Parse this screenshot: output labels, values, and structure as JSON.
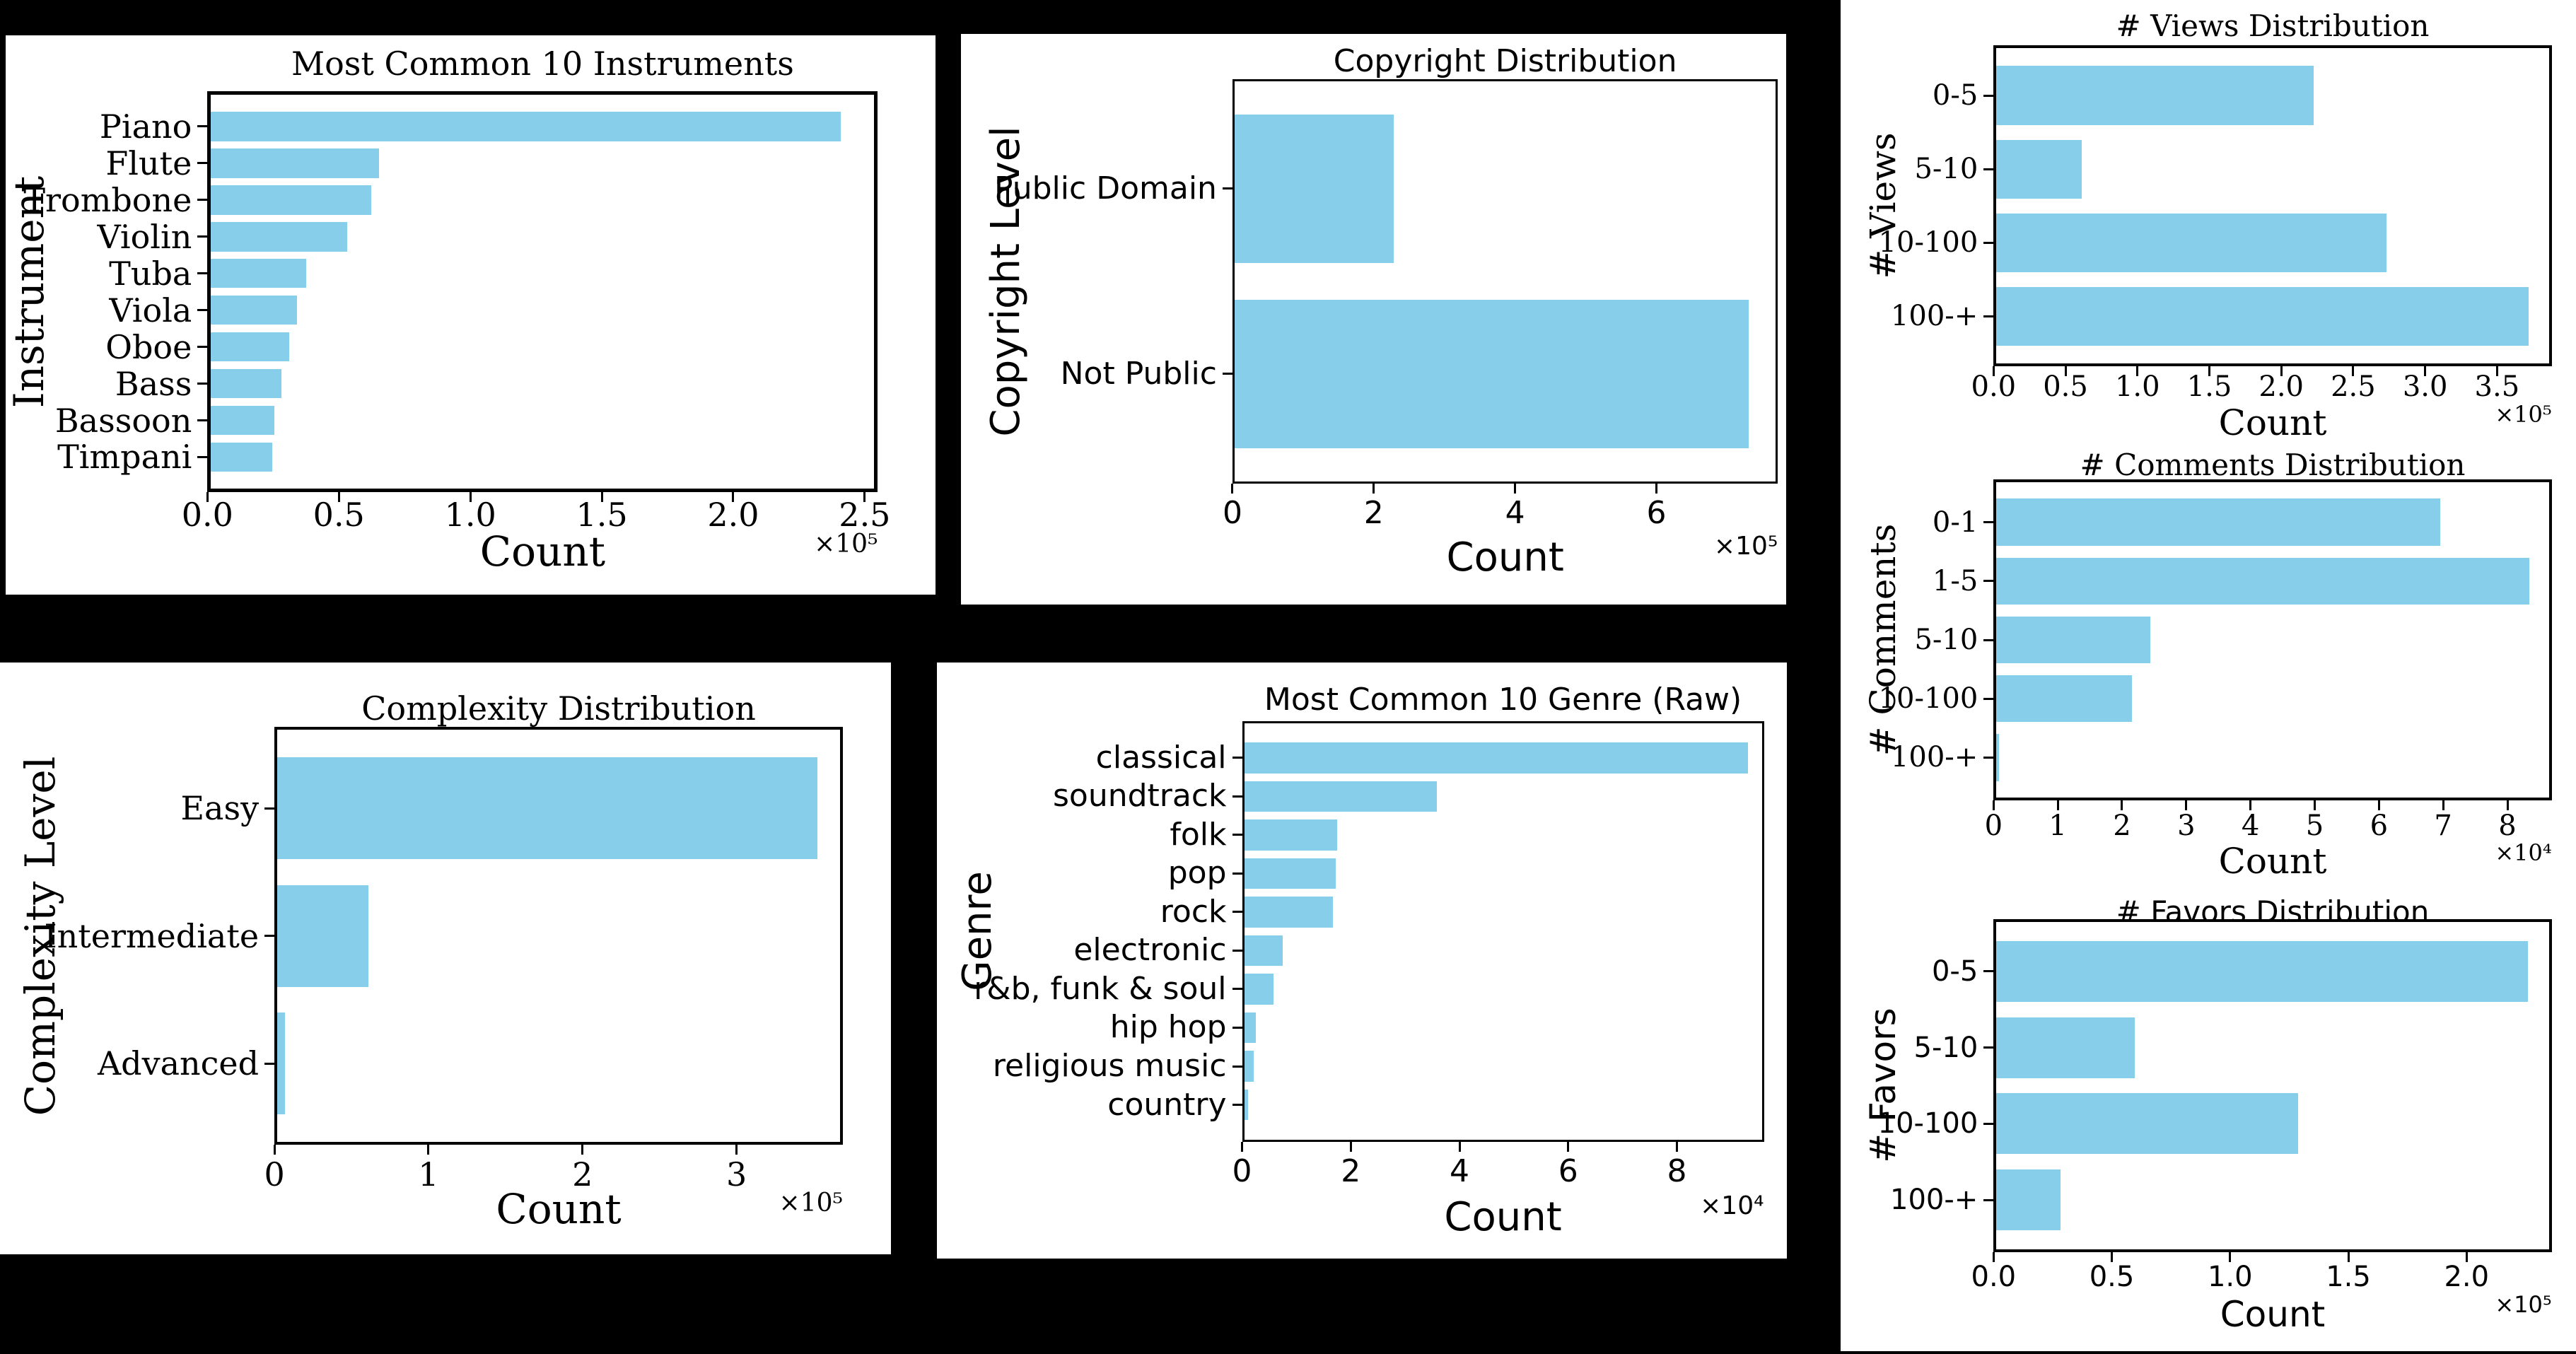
{
  "page": {
    "background_color": "#000000",
    "panel_color": "#ffffff",
    "bar_color": "#87CEEB",
    "axis_color": "#000000"
  },
  "chart_data": [
    {
      "id": "instruments",
      "type": "bar",
      "orientation": "horizontal",
      "title": "Most Common 10 Instruments",
      "xlabel": "Count",
      "ylabel": "Instrument",
      "offset_label": "×10⁵",
      "categories": [
        "Piano",
        "Flute",
        "Trombone",
        "Violin",
        "Tuba",
        "Viola",
        "Oboe",
        "Bass",
        "Bassoon",
        "Timpani"
      ],
      "values": [
        242000,
        64500,
        61500,
        52500,
        36500,
        33000,
        30000,
        27000,
        24500,
        23500
      ],
      "xlim": [
        0,
        255000
      ],
      "xticks": [
        0,
        50000,
        100000,
        150000,
        200000,
        250000
      ],
      "xtick_labels": [
        "0.0",
        "0.5",
        "1.0",
        "1.5",
        "2.0",
        "2.5"
      ],
      "grid": false,
      "bar_color": "#87CEEB"
    },
    {
      "id": "copyright",
      "type": "bar",
      "orientation": "horizontal",
      "title": "Copyright Distribution",
      "xlabel": "Count",
      "ylabel": "Copyright Level",
      "offset_label": "×10⁵",
      "categories": [
        "Public Domain",
        "Not Public"
      ],
      "values": [
        227000,
        733000
      ],
      "xlim": [
        0,
        772000
      ],
      "xticks": [
        0,
        200000,
        400000,
        600000
      ],
      "xtick_labels": [
        "0",
        "2",
        "4",
        "6"
      ],
      "grid": false,
      "bar_color": "#87CEEB"
    },
    {
      "id": "views",
      "type": "bar",
      "orientation": "horizontal",
      "title": "# Views Distribution",
      "xlabel": "Count",
      "ylabel": "# Views",
      "offset_label": "×10⁵",
      "categories": [
        "0-5",
        "5-10",
        "10-100",
        "100-+"
      ],
      "values": [
        223000,
        60000,
        274000,
        374000
      ],
      "xlim": [
        0,
        388000
      ],
      "xticks": [
        0,
        50000,
        100000,
        150000,
        200000,
        250000,
        300000,
        350000
      ],
      "xtick_labels": [
        "0.0",
        "0.5",
        "1.0",
        "1.5",
        "2.0",
        "2.5",
        "3.0",
        "3.5"
      ],
      "grid": false,
      "bar_color": "#87CEEB"
    },
    {
      "id": "comments",
      "type": "bar",
      "orientation": "horizontal",
      "title": "# Comments Distribution",
      "xlabel": "Count",
      "ylabel": "# Comments",
      "offset_label": "×10⁴",
      "categories": [
        "0-1",
        "1-5",
        "5-10",
        "10-100",
        "100-+"
      ],
      "values": [
        69800,
        83800,
        24200,
        21300,
        400
      ],
      "xlim": [
        0,
        86900
      ],
      "xticks": [
        0,
        10000,
        20000,
        30000,
        40000,
        50000,
        60000,
        70000,
        80000
      ],
      "xtick_labels": [
        "0",
        "1",
        "2",
        "3",
        "4",
        "5",
        "6",
        "7",
        "8"
      ],
      "grid": false,
      "bar_color": "#87CEEB"
    },
    {
      "id": "favors",
      "type": "bar",
      "orientation": "horizontal",
      "title": "# Favors Distribution",
      "xlabel": "Count",
      "ylabel": "# Favors",
      "offset_label": "×10⁵",
      "categories": [
        "0-5",
        "5-10",
        "10-100",
        "100-+"
      ],
      "values": [
        227000,
        59000,
        129000,
        27500
      ],
      "xlim": [
        0,
        236000
      ],
      "xticks": [
        0,
        50000,
        100000,
        150000,
        200000
      ],
      "xtick_labels": [
        "0.0",
        "0.5",
        "1.0",
        "1.5",
        "2.0"
      ],
      "grid": false,
      "bar_color": "#87CEEB"
    },
    {
      "id": "complexity",
      "type": "bar",
      "orientation": "horizontal",
      "title": "Complexity Distribution",
      "xlabel": "Count",
      "ylabel": "Complexity Level",
      "offset_label": "×10⁵",
      "categories": [
        "Easy",
        "Intermediate",
        "Advanced"
      ],
      "values": [
        354000,
        60000,
        5000
      ],
      "xlim": [
        0,
        369000
      ],
      "xticks": [
        0,
        100000,
        200000,
        300000
      ],
      "xtick_labels": [
        "0",
        "1",
        "2",
        "3"
      ],
      "grid": false,
      "bar_color": "#87CEEB"
    },
    {
      "id": "genre",
      "type": "bar",
      "orientation": "horizontal",
      "title": "Most Common 10 Genre (Raw)",
      "xlabel": "Count",
      "ylabel": "Genre",
      "offset_label": "×10⁴",
      "categories": [
        "classical",
        "soundtrack",
        "folk",
        "pop",
        "rock",
        "electronic",
        "r&b, funk & soul",
        "hip hop",
        "religious music",
        "country"
      ],
      "values": [
        93500,
        35700,
        17200,
        17000,
        16500,
        7100,
        5500,
        2100,
        1800,
        700
      ],
      "xlim": [
        0,
        96000
      ],
      "xticks": [
        0,
        20000,
        40000,
        60000,
        80000
      ],
      "xtick_labels": [
        "0",
        "2",
        "4",
        "6",
        "8"
      ],
      "grid": false,
      "bar_color": "#87CEEB"
    }
  ]
}
